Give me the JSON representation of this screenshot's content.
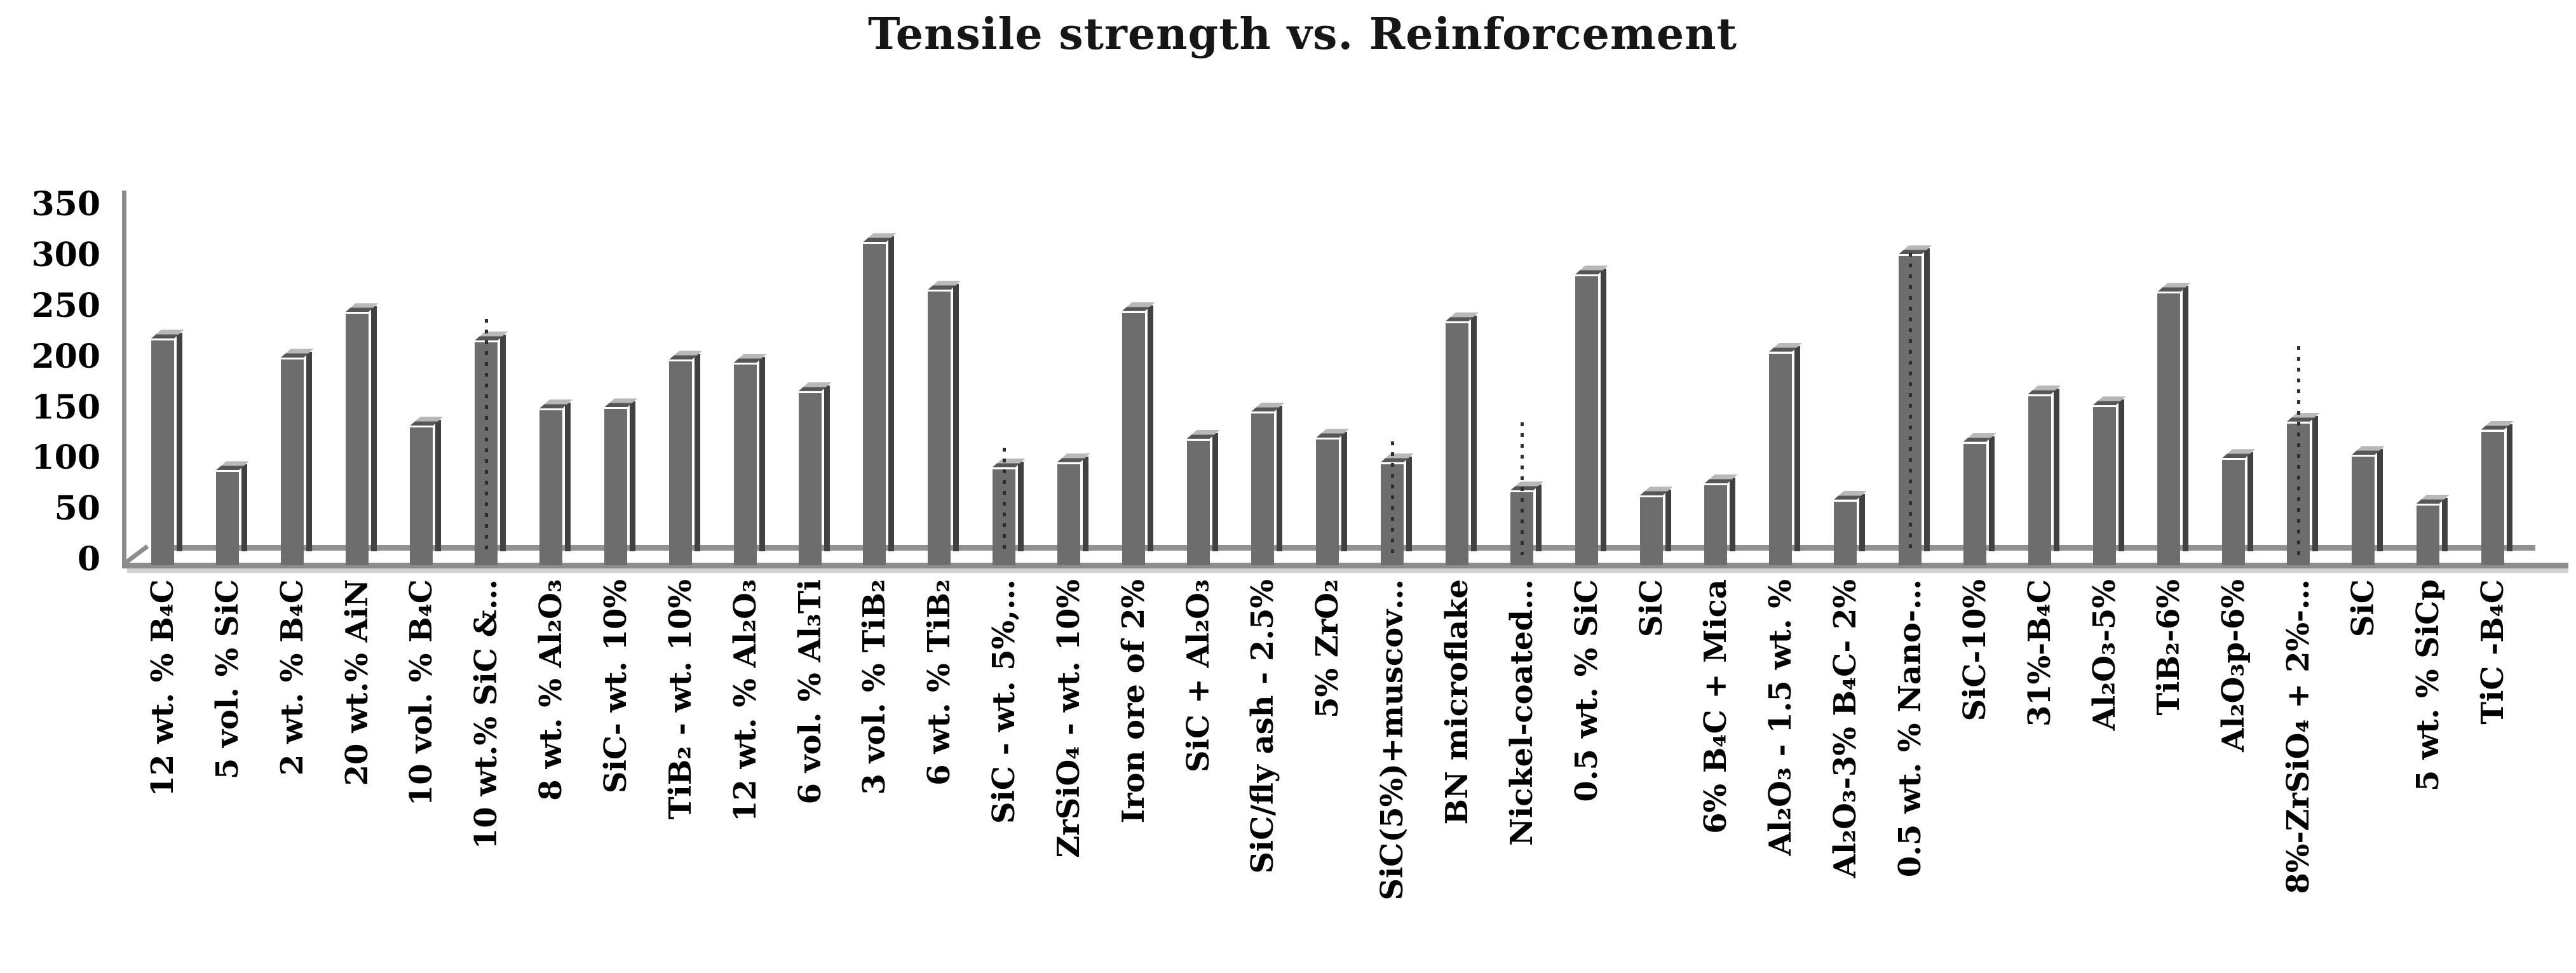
{
  "chart_data": {
    "type": "bar",
    "style": "3d-column",
    "title": "Tensile strength vs. Reinforcement",
    "xlabel": "",
    "ylabel": "",
    "ylim": [
      0,
      350
    ],
    "yticks": [
      0,
      50,
      100,
      150,
      200,
      250,
      300,
      350
    ],
    "grid": "off",
    "legend": "none",
    "categories": [
      "12 wt. % B₄C",
      "5 vol. % SiC",
      "2 wt. % B₄C",
      "20 wt.% AiN",
      "10 vol. % B₄C",
      "10 wt.% SiC &…",
      "8 wt. % Al₂O₃",
      "SiC- wt. 10%",
      "TiB₂ - wt. 10%",
      "12 wt. % Al₂O₃",
      "6 vol. % Al₃Ti",
      "3 vol. % TiB₂",
      "6 wt. % TiB₂",
      "SiC - wt. 5%,…",
      "ZrSiO₄ - wt. 10%",
      "Iron ore of 2%",
      "SiC + Al₂O₃",
      "SiC/fly ash - 2.5%",
      "5% ZrO₂",
      "SiC(5%)+muscov…",
      "BN microflake",
      "Nickel-coated…",
      "0.5 wt. % SiC",
      "SiC",
      "6% B₄C + Mica",
      "Al₂O₃ - 1.5 wt. %",
      "Al₂O₃-3% B₄C- 2%",
      "0.5 wt. % Nano-…",
      "SiC-10%",
      "31%-B₄C",
      "Al₂O₃-5%",
      "TiB₂-6%",
      "Al₂O₃p-6%",
      "8%-ZrSiO₄ + 2%-…",
      "SiC",
      "5 wt. % SiCp",
      "TiC -B₄C"
    ],
    "values": [
      215,
      85,
      196,
      241,
      129,
      213,
      146,
      147,
      194,
      191,
      163,
      310,
      263,
      88,
      93,
      242,
      116,
      143,
      117,
      93,
      232,
      65,
      278,
      60,
      72,
      202,
      56,
      298,
      113,
      160,
      149,
      261,
      97,
      133,
      100,
      52,
      125
    ],
    "leader_dots": [
      {
        "index": 5,
        "top": 502
      },
      {
        "index": 13,
        "top": 705
      },
      {
        "index": 19,
        "top": 695
      },
      {
        "index": 21,
        "top": 665
      },
      {
        "index": 27,
        "top": 398
      },
      {
        "index": 33,
        "top": 545
      }
    ],
    "colors": {
      "bar_front": "#6d6d6d",
      "bar_side": "#414141",
      "bar_top": "#b8b8b8",
      "bar_top_edge": "#565656",
      "axis": "#8c8c8c",
      "text": "#000000"
    }
  }
}
